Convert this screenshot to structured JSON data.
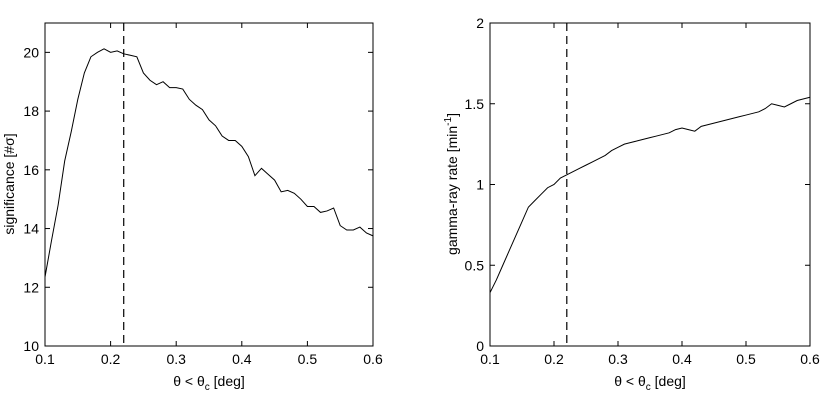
{
  "chart_data": [
    {
      "type": "line",
      "title": "",
      "xlabel": {
        "main": "θ < θ",
        "sub": "c",
        "tail": " [deg]"
      },
      "ylabel": {
        "text": "significance [#σ]"
      },
      "xlim": [
        0.1,
        0.6
      ],
      "ylim": [
        10,
        21
      ],
      "xticks": [
        0.1,
        0.2,
        0.3,
        0.4,
        0.5,
        0.6
      ],
      "xtick_labels": [
        "0.1",
        "0.2",
        "0.3",
        "0.4",
        "0.5",
        "0.6"
      ],
      "yticks": [
        10,
        12,
        14,
        16,
        18,
        20
      ],
      "ytick_labels": [
        "10",
        "12",
        "14",
        "16",
        "18",
        "20"
      ],
      "grid": false,
      "vline": 0.22,
      "series": [
        {
          "x": [
            0.1,
            0.11,
            0.12,
            0.13,
            0.14,
            0.15,
            0.16,
            0.17,
            0.18,
            0.19,
            0.2,
            0.21,
            0.22,
            0.23,
            0.24,
            0.25,
            0.26,
            0.27,
            0.28,
            0.29,
            0.3,
            0.31,
            0.32,
            0.33,
            0.34,
            0.35,
            0.36,
            0.37,
            0.38,
            0.39,
            0.4,
            0.41,
            0.42,
            0.43,
            0.44,
            0.45,
            0.46,
            0.47,
            0.48,
            0.49,
            0.5,
            0.51,
            0.52,
            0.53,
            0.54,
            0.55,
            0.56,
            0.57,
            0.58,
            0.59,
            0.6
          ],
          "y": [
            12.35,
            13.6,
            14.8,
            16.3,
            17.3,
            18.4,
            19.3,
            19.85,
            20.0,
            20.12,
            20.0,
            20.05,
            19.95,
            19.9,
            19.85,
            19.3,
            19.05,
            18.9,
            19.0,
            18.8,
            18.8,
            18.75,
            18.4,
            18.2,
            18.05,
            17.7,
            17.5,
            17.15,
            17.0,
            17.0,
            16.8,
            16.45,
            15.8,
            16.05,
            15.85,
            15.65,
            15.25,
            15.3,
            15.2,
            15.0,
            14.75,
            14.75,
            14.55,
            14.6,
            14.7,
            14.1,
            13.95,
            13.95,
            14.05,
            13.85,
            13.75
          ]
        }
      ]
    },
    {
      "type": "line",
      "title": "",
      "xlabel": {
        "main": "θ < θ",
        "sub": "c",
        "tail": " [deg]"
      },
      "ylabel": {
        "main": "gamma-ray rate [min",
        "sup": "-1",
        "tail": "]"
      },
      "xlim": [
        0.1,
        0.6
      ],
      "ylim": [
        0,
        2
      ],
      "xticks": [
        0.1,
        0.2,
        0.3,
        0.4,
        0.5,
        0.6
      ],
      "xtick_labels": [
        "0.1",
        "0.2",
        "0.3",
        "0.4",
        "0.5",
        "0.6"
      ],
      "yticks": [
        0,
        0.5,
        1,
        1.5,
        2
      ],
      "ytick_labels": [
        "0",
        "0.5",
        "1",
        "1.5",
        "2"
      ],
      "grid": false,
      "vline": 0.22,
      "series": [
        {
          "x": [
            0.1,
            0.11,
            0.12,
            0.13,
            0.14,
            0.15,
            0.16,
            0.17,
            0.18,
            0.19,
            0.2,
            0.21,
            0.22,
            0.23,
            0.24,
            0.25,
            0.26,
            0.27,
            0.28,
            0.29,
            0.3,
            0.31,
            0.32,
            0.33,
            0.34,
            0.35,
            0.36,
            0.37,
            0.38,
            0.39,
            0.4,
            0.41,
            0.42,
            0.43,
            0.44,
            0.45,
            0.46,
            0.47,
            0.48,
            0.49,
            0.5,
            0.51,
            0.52,
            0.53,
            0.54,
            0.55,
            0.56,
            0.57,
            0.58,
            0.59,
            0.6
          ],
          "y": [
            0.33,
            0.41,
            0.5,
            0.59,
            0.68,
            0.77,
            0.86,
            0.9,
            0.94,
            0.98,
            1.0,
            1.04,
            1.06,
            1.08,
            1.1,
            1.12,
            1.14,
            1.16,
            1.18,
            1.21,
            1.23,
            1.25,
            1.26,
            1.27,
            1.28,
            1.29,
            1.3,
            1.31,
            1.32,
            1.34,
            1.35,
            1.34,
            1.33,
            1.36,
            1.37,
            1.38,
            1.39,
            1.4,
            1.41,
            1.42,
            1.43,
            1.44,
            1.45,
            1.47,
            1.5,
            1.49,
            1.48,
            1.5,
            1.52,
            1.53,
            1.54
          ]
        }
      ]
    }
  ]
}
